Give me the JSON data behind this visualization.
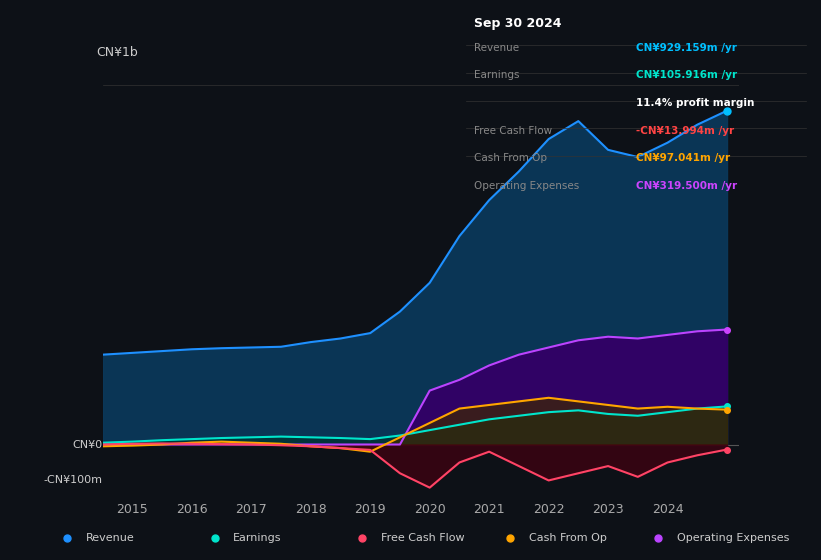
{
  "bg_color": "#0d1117",
  "plot_bg_color": "#0d1117",
  "title_box": {
    "date": "Sep 30 2024",
    "rows": [
      {
        "label": "Revenue",
        "value": "CN¥929.159m /yr",
        "value_color": "#00bfff"
      },
      {
        "label": "Earnings",
        "value": "CN¥105.916m /yr",
        "value_color": "#00e5cc"
      },
      {
        "label": "",
        "value": "11.4% profit margin",
        "value_color": "#ffffff"
      },
      {
        "label": "Free Cash Flow",
        "value": "-CN¥13.994m /yr",
        "value_color": "#ff4444"
      },
      {
        "label": "Cash From Op",
        "value": "CN¥97.041m /yr",
        "value_color": "#ffa500"
      },
      {
        "label": "Operating Expenses",
        "value": "CN¥319.500m /yr",
        "value_color": "#cc44ff"
      }
    ]
  },
  "ylabel": "CN¥1b",
  "y_zero_label": "CN¥0",
  "y_neg_label": "-CN¥100m",
  "x_ticks": [
    2015,
    2016,
    2017,
    2018,
    2019,
    2020,
    2021,
    2022,
    2023,
    2024
  ],
  "ylim": [
    -150,
    1050
  ],
  "series": {
    "revenue": {
      "color": "#1e90ff",
      "fill_color": "#1e5a8a",
      "label": "Revenue",
      "dot_color": "#00bfff",
      "x": [
        2014.5,
        2015.0,
        2015.5,
        2016.0,
        2016.5,
        2017.0,
        2017.5,
        2018.0,
        2018.5,
        2019.0,
        2019.5,
        2020.0,
        2020.5,
        2021.0,
        2021.5,
        2022.0,
        2022.5,
        2023.0,
        2023.5,
        2024.0,
        2024.5,
        2025.0
      ],
      "y": [
        250,
        255,
        260,
        265,
        268,
        270,
        272,
        285,
        295,
        310,
        370,
        450,
        580,
        680,
        760,
        850,
        900,
        820,
        800,
        840,
        890,
        929
      ]
    },
    "earnings": {
      "color": "#00e5cc",
      "fill_color": "#005544",
      "label": "Earnings",
      "dot_color": "#00e5cc",
      "x": [
        2014.5,
        2015.0,
        2015.5,
        2016.0,
        2016.5,
        2017.0,
        2017.5,
        2018.0,
        2018.5,
        2019.0,
        2019.5,
        2020.0,
        2020.5,
        2021.0,
        2021.5,
        2022.0,
        2022.5,
        2023.0,
        2023.5,
        2024.0,
        2024.5,
        2025.0
      ],
      "y": [
        5,
        8,
        12,
        15,
        18,
        20,
        22,
        20,
        18,
        15,
        25,
        40,
        55,
        70,
        80,
        90,
        95,
        85,
        80,
        90,
        100,
        106
      ]
    },
    "free_cash_flow": {
      "color": "#ff4466",
      "fill_color": "#660022",
      "label": "Free Cash Flow",
      "dot_color": "#ff4466",
      "x": [
        2014.5,
        2015.0,
        2015.5,
        2016.0,
        2016.5,
        2017.0,
        2017.5,
        2018.0,
        2018.5,
        2019.0,
        2019.5,
        2020.0,
        2020.5,
        2021.0,
        2021.5,
        2022.0,
        2022.5,
        2023.0,
        2023.5,
        2024.0,
        2024.5,
        2025.0
      ],
      "y": [
        0,
        2,
        3,
        2,
        1,
        0,
        -2,
        -5,
        -10,
        -15,
        -80,
        -120,
        -50,
        -20,
        -60,
        -100,
        -80,
        -60,
        -90,
        -50,
        -30,
        -14
      ]
    },
    "cash_from_op": {
      "color": "#ffa500",
      "fill_color": "#664400",
      "label": "Cash From Op",
      "dot_color": "#ffa500",
      "x": [
        2014.5,
        2015.0,
        2015.5,
        2016.0,
        2016.5,
        2017.0,
        2017.5,
        2018.0,
        2018.5,
        2019.0,
        2019.5,
        2020.0,
        2020.5,
        2021.0,
        2021.5,
        2022.0,
        2022.5,
        2023.0,
        2023.5,
        2024.0,
        2024.5,
        2025.0
      ],
      "y": [
        -5,
        -3,
        0,
        5,
        8,
        5,
        2,
        -5,
        -10,
        -20,
        20,
        60,
        100,
        110,
        120,
        130,
        120,
        110,
        100,
        105,
        100,
        97
      ]
    },
    "operating_expenses": {
      "color": "#bb44ff",
      "fill_color": "#440088",
      "label": "Operating Expenses",
      "dot_color": "#cc44ff",
      "x": [
        2014.5,
        2015.0,
        2015.5,
        2016.0,
        2016.5,
        2017.0,
        2017.5,
        2018.0,
        2018.5,
        2019.0,
        2019.5,
        2020.0,
        2020.5,
        2021.0,
        2021.5,
        2022.0,
        2022.5,
        2023.0,
        2023.5,
        2024.0,
        2024.5,
        2025.0
      ],
      "y": [
        0,
        0,
        0,
        0,
        0,
        0,
        0,
        0,
        0,
        0,
        0,
        150,
        180,
        220,
        250,
        270,
        290,
        300,
        295,
        305,
        315,
        320
      ]
    }
  },
  "legend_items": [
    {
      "label": "Revenue",
      "color": "#1e90ff"
    },
    {
      "label": "Earnings",
      "color": "#00e5cc"
    },
    {
      "label": "Free Cash Flow",
      "color": "#ff4466"
    },
    {
      "label": "Cash From Op",
      "color": "#ffa500"
    },
    {
      "label": "Operating Expenses",
      "color": "#bb44ff"
    }
  ]
}
